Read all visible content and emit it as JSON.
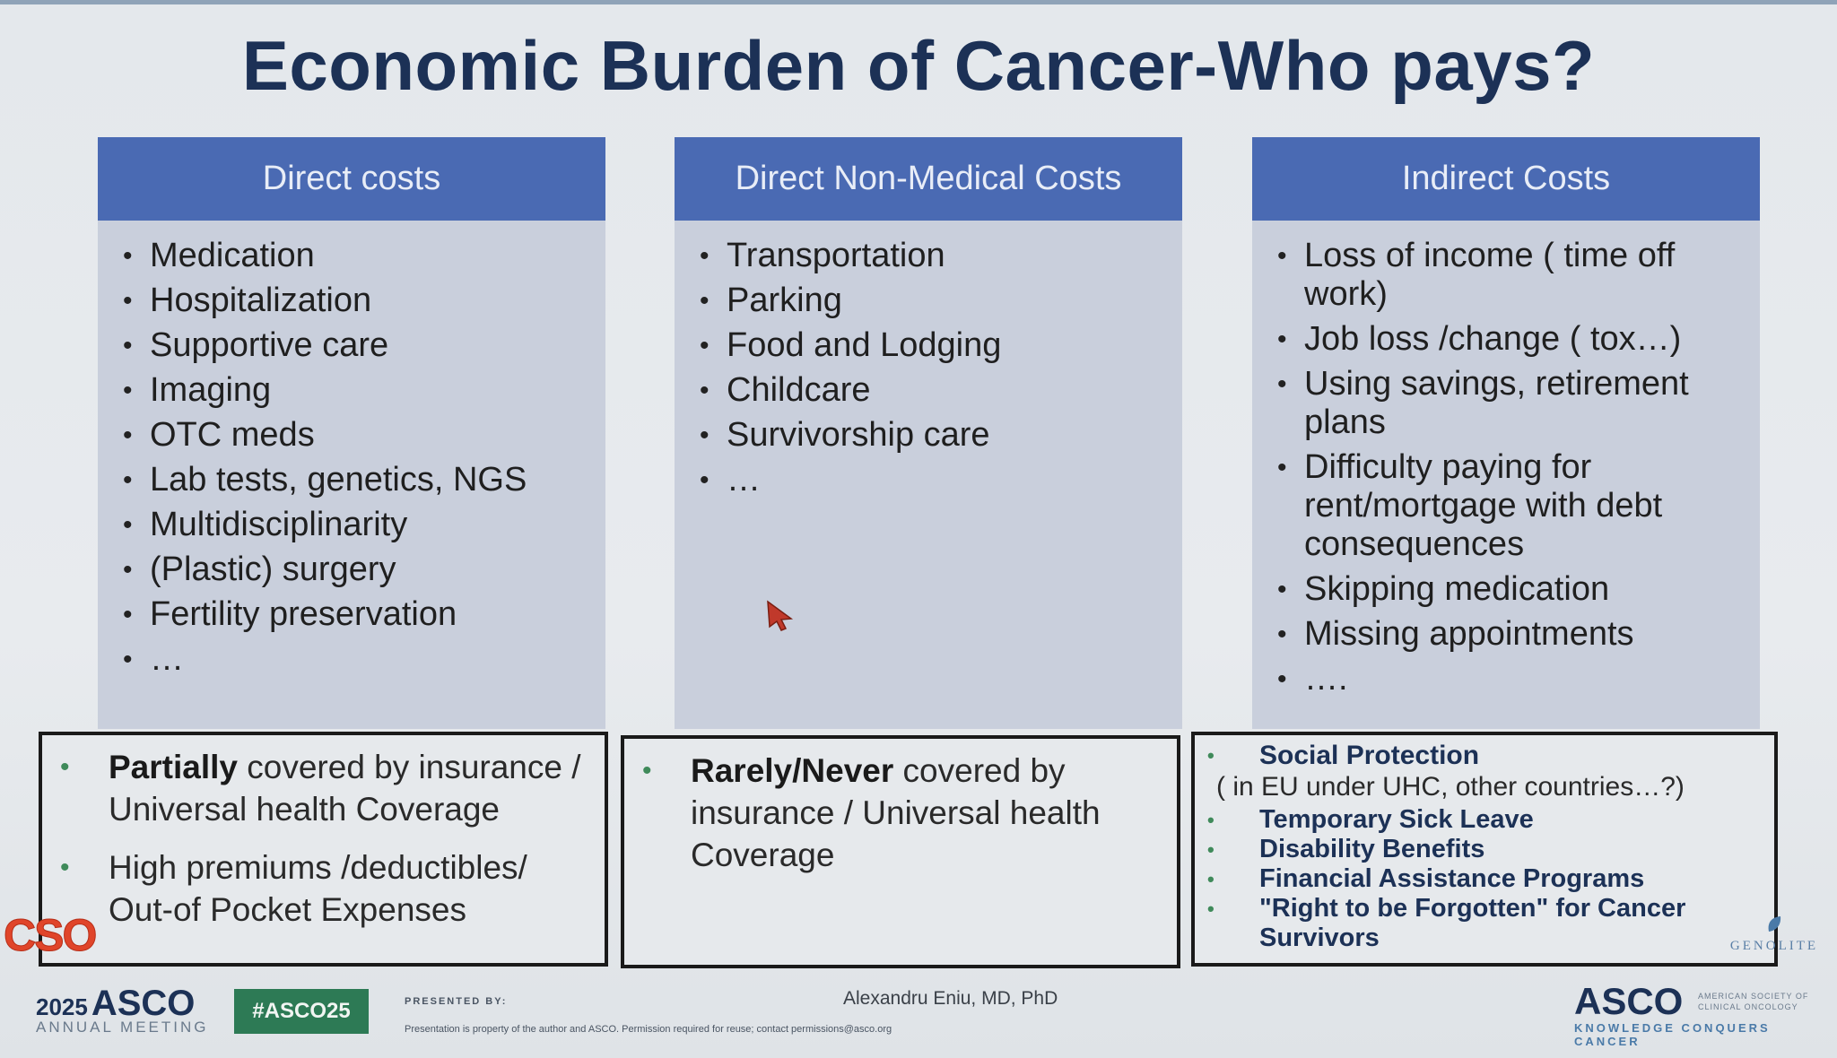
{
  "title": "Economic Burden of Cancer-Who pays?",
  "columns": [
    {
      "header": "Direct costs",
      "items": [
        "Medication",
        "Hospitalization",
        "Supportive care",
        "Imaging",
        "OTC meds",
        "Lab tests, genetics, NGS",
        "Multidisciplinarity",
        "(Plastic) surgery",
        "Fertility preservation",
        "…"
      ]
    },
    {
      "header": "Direct Non-Medical Costs",
      "items": [
        "Transportation",
        "Parking",
        "Food and Lodging",
        "Childcare",
        "Survivorship care",
        "…"
      ]
    },
    {
      "header": "Indirect Costs",
      "items": [
        "Loss of income ( time off work)",
        "Job loss /change ( tox…)",
        "Using savings, retirement plans",
        "Difficulty paying for rent/mortgage with debt consequences",
        "Skipping medication",
        "Missing appointments",
        "…."
      ]
    }
  ],
  "boxes": {
    "direct": {
      "item1_bold": "Partially",
      "item1_rest": " covered by insurance / Universal health Coverage",
      "item2": "High premiums /deductibles/ Out-of Pocket Expenses"
    },
    "nonmedical": {
      "item1_bold": "Rarely/Never",
      "item1_rest": " covered by insurance / Universal health Coverage"
    },
    "indirect": {
      "heading": "Social Protection",
      "subheading": "( in EU under UHC, other countries…?)",
      "items": [
        "Temporary Sick Leave",
        "Disability Benefits",
        "Financial Assistance Programs",
        "\"Right to be Forgotten\" for Cancer Survivors"
      ]
    }
  },
  "logos": {
    "cso": "CSO",
    "asco_left_year": "2025",
    "asco_left_brand": "ASCO",
    "asco_left_meeting": "ANNUAL MEETING",
    "hashtag": "#ASCO25",
    "asco_right_brand": "ASCO",
    "asco_right_society": "AMERICAN SOCIETY OF CLINICAL ONCOLOGY",
    "asco_right_tagline": "KNOWLEDGE CONQUERS CANCER",
    "watermark": "GENOLITE"
  },
  "footer": {
    "presented_by": "PRESENTED BY:",
    "speaker": "Alexandru Eniu, MD, PhD",
    "disclaimer": "Presentation is property of the author and ASCO. Permission required for reuse; contact permissions@asco.org"
  },
  "colors": {
    "title": "#1c3156",
    "column_header_bg": "#4a6ab3",
    "column_body_bg": "#c9cfdc",
    "bullet_green": "#3f8a5a",
    "hashtag_bg": "#2d7a55",
    "cso_red": "#e0452a",
    "cursor_red": "#c0392b"
  },
  "icons": {
    "cursor": "mouse-pointer-icon",
    "leaf": "leaf-icon"
  }
}
